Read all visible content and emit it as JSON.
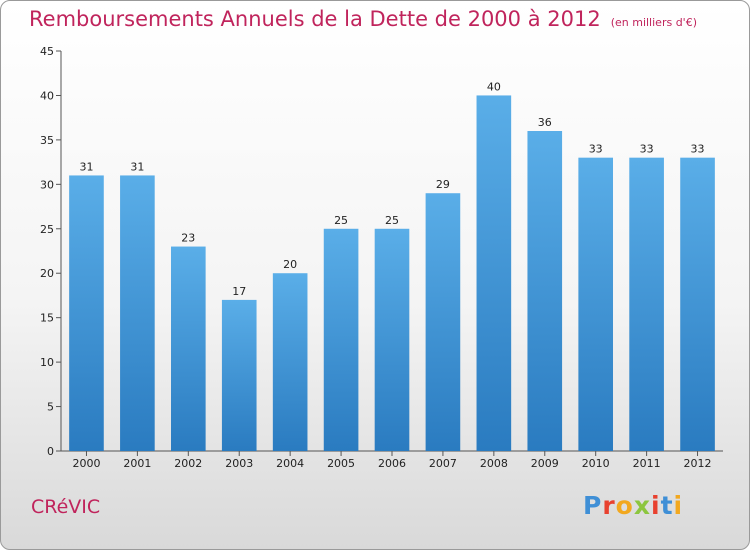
{
  "header": {
    "title": "Remboursements Annuels de la Dette de 2000 à 2012",
    "subtitle": "(en milliers d'€)"
  },
  "footer": {
    "commune": "CRéVIC",
    "brand_letters": [
      "P",
      "r",
      "o",
      "x",
      "i",
      "t",
      "i"
    ],
    "brand_colors": [
      "#3f8fd6",
      "#e8412f",
      "#f2a81f",
      "#8cc63f",
      "#e8412f",
      "#3f8fd6",
      "#f2a81f"
    ]
  },
  "chart_data": {
    "type": "bar",
    "title": "Remboursements Annuels de la Dette de 2000 à 2012",
    "subtitle": "(en milliers d'€)",
    "categories": [
      "2000",
      "2001",
      "2002",
      "2003",
      "2004",
      "2005",
      "2006",
      "2007",
      "2008",
      "2009",
      "2010",
      "2011",
      "2012"
    ],
    "values": [
      31,
      31,
      23,
      17,
      20,
      25,
      25,
      29,
      40,
      36,
      33,
      33,
      33
    ],
    "ylim": [
      0,
      45
    ],
    "yticks": [
      0,
      5,
      10,
      15,
      20,
      25,
      30,
      35,
      40,
      45
    ],
    "grid": false,
    "bar_color_top": "#5aaee8",
    "bar_color_bottom": "#2a7bc0"
  }
}
